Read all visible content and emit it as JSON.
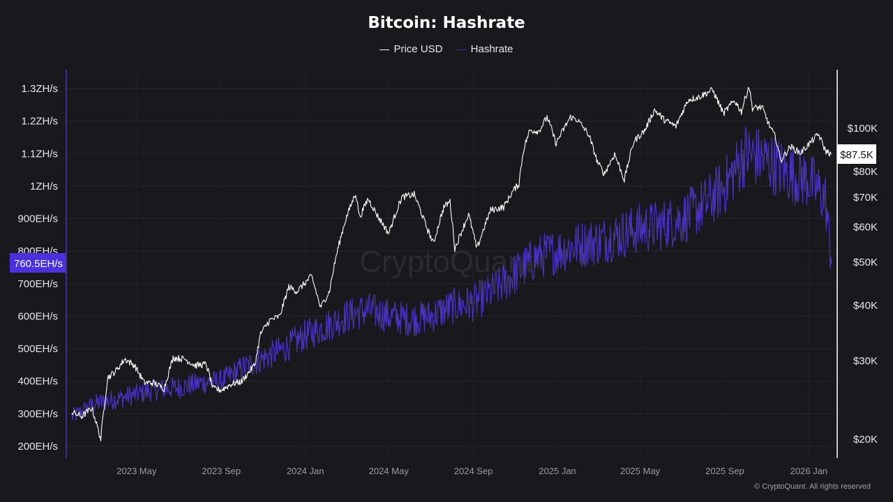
{
  "chart_data": {
    "type": "line",
    "title": "Bitcoin: Hashrate",
    "legend": [
      {
        "name": "Price USD",
        "color": "#ffffff"
      },
      {
        "name": "Hashrate",
        "color": "#4a31c4"
      }
    ],
    "legend_position": "top-center",
    "grid": true,
    "x_ticks": [
      "2023 May",
      "2023 Sep",
      "2024 Jan",
      "2024 May",
      "2024 Sep",
      "2025 Jan",
      "2025 May",
      "2025 Sep",
      "2026 Jan"
    ],
    "left_axis": {
      "series": "Hashrate",
      "ticks": [
        "200EH/s",
        "300EH/s",
        "400EH/s",
        "500EH/s",
        "600EH/s",
        "700EH/s",
        "800EH/s",
        "900EH/s",
        "1ZH/s",
        "1.1ZH/s",
        "1.2ZH/s",
        "1.3ZH/s"
      ],
      "range_eh_s": [
        180,
        1300
      ],
      "current_value_label": "760.5EH/s",
      "current_value": 760.5
    },
    "right_axis": {
      "series": "Price USD",
      "scale": "log",
      "ticks": [
        "$20K",
        "$30K",
        "$40K",
        "$50K",
        "$60K",
        "$70K",
        "$80K",
        "$100K"
      ],
      "tick_values": [
        20000,
        30000,
        40000,
        50000,
        60000,
        70000,
        80000,
        100000
      ],
      "current_value_label": "$87.5K",
      "current_value": 87500
    },
    "x_range": [
      "2023-01-27",
      "2026-02-03"
    ],
    "series": [
      {
        "name": "Price USD",
        "color": "#ffffff",
        "points": [
          [
            "2023-01-27",
            23000
          ],
          [
            "2023-02-10",
            22500
          ],
          [
            "2023-02-25",
            23500
          ],
          [
            "2023-03-10",
            20000
          ],
          [
            "2023-03-20",
            27500
          ],
          [
            "2023-04-01",
            28500
          ],
          [
            "2023-04-14",
            30300
          ],
          [
            "2023-04-28",
            29300
          ],
          [
            "2023-05-12",
            26800
          ],
          [
            "2023-05-26",
            26800
          ],
          [
            "2023-06-10",
            26000
          ],
          [
            "2023-06-23",
            30500
          ],
          [
            "2023-07-10",
            30300
          ],
          [
            "2023-07-25",
            29300
          ],
          [
            "2023-08-10",
            29500
          ],
          [
            "2023-08-20",
            26000
          ],
          [
            "2023-09-01",
            25800
          ],
          [
            "2023-09-15",
            26600
          ],
          [
            "2023-10-01",
            27000
          ],
          [
            "2023-10-20",
            29500
          ],
          [
            "2023-10-28",
            34500
          ],
          [
            "2023-11-10",
            37000
          ],
          [
            "2023-11-25",
            37800
          ],
          [
            "2023-12-08",
            44000
          ],
          [
            "2023-12-20",
            43000
          ],
          [
            "2024-01-10",
            46500
          ],
          [
            "2024-01-23",
            39500
          ],
          [
            "2024-02-05",
            43000
          ],
          [
            "2024-02-15",
            51800
          ],
          [
            "2024-02-28",
            62000
          ],
          [
            "2024-03-14",
            71500
          ],
          [
            "2024-03-20",
            63000
          ],
          [
            "2024-04-01",
            69500
          ],
          [
            "2024-04-15",
            63500
          ],
          [
            "2024-05-01",
            58000
          ],
          [
            "2024-05-20",
            70000
          ],
          [
            "2024-06-07",
            71000
          ],
          [
            "2024-06-24",
            60500
          ],
          [
            "2024-07-05",
            55000
          ],
          [
            "2024-07-20",
            66500
          ],
          [
            "2024-07-29",
            68500
          ],
          [
            "2024-08-05",
            53500
          ],
          [
            "2024-08-25",
            64000
          ],
          [
            "2024-09-06",
            53500
          ],
          [
            "2024-09-26",
            65500
          ],
          [
            "2024-10-15",
            66500
          ],
          [
            "2024-10-29",
            72500
          ],
          [
            "2024-11-06",
            75000
          ],
          [
            "2024-11-13",
            90000
          ],
          [
            "2024-11-22",
            99000
          ],
          [
            "2024-12-05",
            98500
          ],
          [
            "2024-12-17",
            106000
          ],
          [
            "2024-12-30",
            92500
          ],
          [
            "2025-01-20",
            106000
          ],
          [
            "2025-01-30",
            104500
          ],
          [
            "2025-02-15",
            97000
          ],
          [
            "2025-02-28",
            84000
          ],
          [
            "2025-03-10",
            79000
          ],
          [
            "2025-03-25",
            87500
          ],
          [
            "2025-04-08",
            76500
          ],
          [
            "2025-04-22",
            93500
          ],
          [
            "2025-05-08",
            99000
          ],
          [
            "2025-05-22",
            110000
          ],
          [
            "2025-06-05",
            104500
          ],
          [
            "2025-06-22",
            101000
          ],
          [
            "2025-07-10",
            116000
          ],
          [
            "2025-07-25",
            117500
          ],
          [
            "2025-08-14",
            122000
          ],
          [
            "2025-08-30",
            108000
          ],
          [
            "2025-09-15",
            115500
          ],
          [
            "2025-09-25",
            109000
          ],
          [
            "2025-10-06",
            124500
          ],
          [
            "2025-10-11",
            111000
          ],
          [
            "2025-10-25",
            111500
          ],
          [
            "2025-11-04",
            102000
          ],
          [
            "2025-11-14",
            95000
          ],
          [
            "2025-11-21",
            84500
          ],
          [
            "2025-12-05",
            91000
          ],
          [
            "2025-12-20",
            88000
          ],
          [
            "2026-01-05",
            93500
          ],
          [
            "2026-01-15",
            97000
          ],
          [
            "2026-01-25",
            89000
          ],
          [
            "2026-02-03",
            87500
          ]
        ]
      },
      {
        "name": "Hashrate",
        "color": "#4a31c4",
        "unit": "EH/s",
        "points": [
          [
            "2023-01-27",
            290
          ],
          [
            "2023-03-01",
            330
          ],
          [
            "2023-04-01",
            345
          ],
          [
            "2023-05-01",
            360
          ],
          [
            "2023-06-01",
            375
          ],
          [
            "2023-07-01",
            380
          ],
          [
            "2023-08-01",
            395
          ],
          [
            "2023-09-01",
            400
          ],
          [
            "2023-10-01",
            440
          ],
          [
            "2023-11-01",
            470
          ],
          [
            "2023-12-01",
            500
          ],
          [
            "2024-01-01",
            540
          ],
          [
            "2024-02-01",
            570
          ],
          [
            "2024-03-01",
            600
          ],
          [
            "2024-04-01",
            620
          ],
          [
            "2024-05-01",
            600
          ],
          [
            "2024-06-01",
            590
          ],
          [
            "2024-07-01",
            600
          ],
          [
            "2024-08-01",
            630
          ],
          [
            "2024-09-01",
            640
          ],
          [
            "2024-10-01",
            680
          ],
          [
            "2024-11-01",
            730
          ],
          [
            "2024-12-01",
            780
          ],
          [
            "2025-01-01",
            800
          ],
          [
            "2025-02-01",
            820
          ],
          [
            "2025-03-01",
            830
          ],
          [
            "2025-04-01",
            850
          ],
          [
            "2025-05-01",
            870
          ],
          [
            "2025-06-01",
            880
          ],
          [
            "2025-07-01",
            900
          ],
          [
            "2025-08-01",
            940
          ],
          [
            "2025-09-01",
            1000
          ],
          [
            "2025-10-01",
            1100
          ],
          [
            "2025-11-01",
            1080
          ],
          [
            "2025-12-01",
            1040
          ],
          [
            "2026-01-01",
            1020
          ],
          [
            "2026-01-25",
            960
          ],
          [
            "2026-02-03",
            760.5
          ]
        ]
      }
    ]
  },
  "footer": {
    "copyright": "© CryptoQuant. All rights reserved",
    "watermark": "CryptoQuant"
  }
}
